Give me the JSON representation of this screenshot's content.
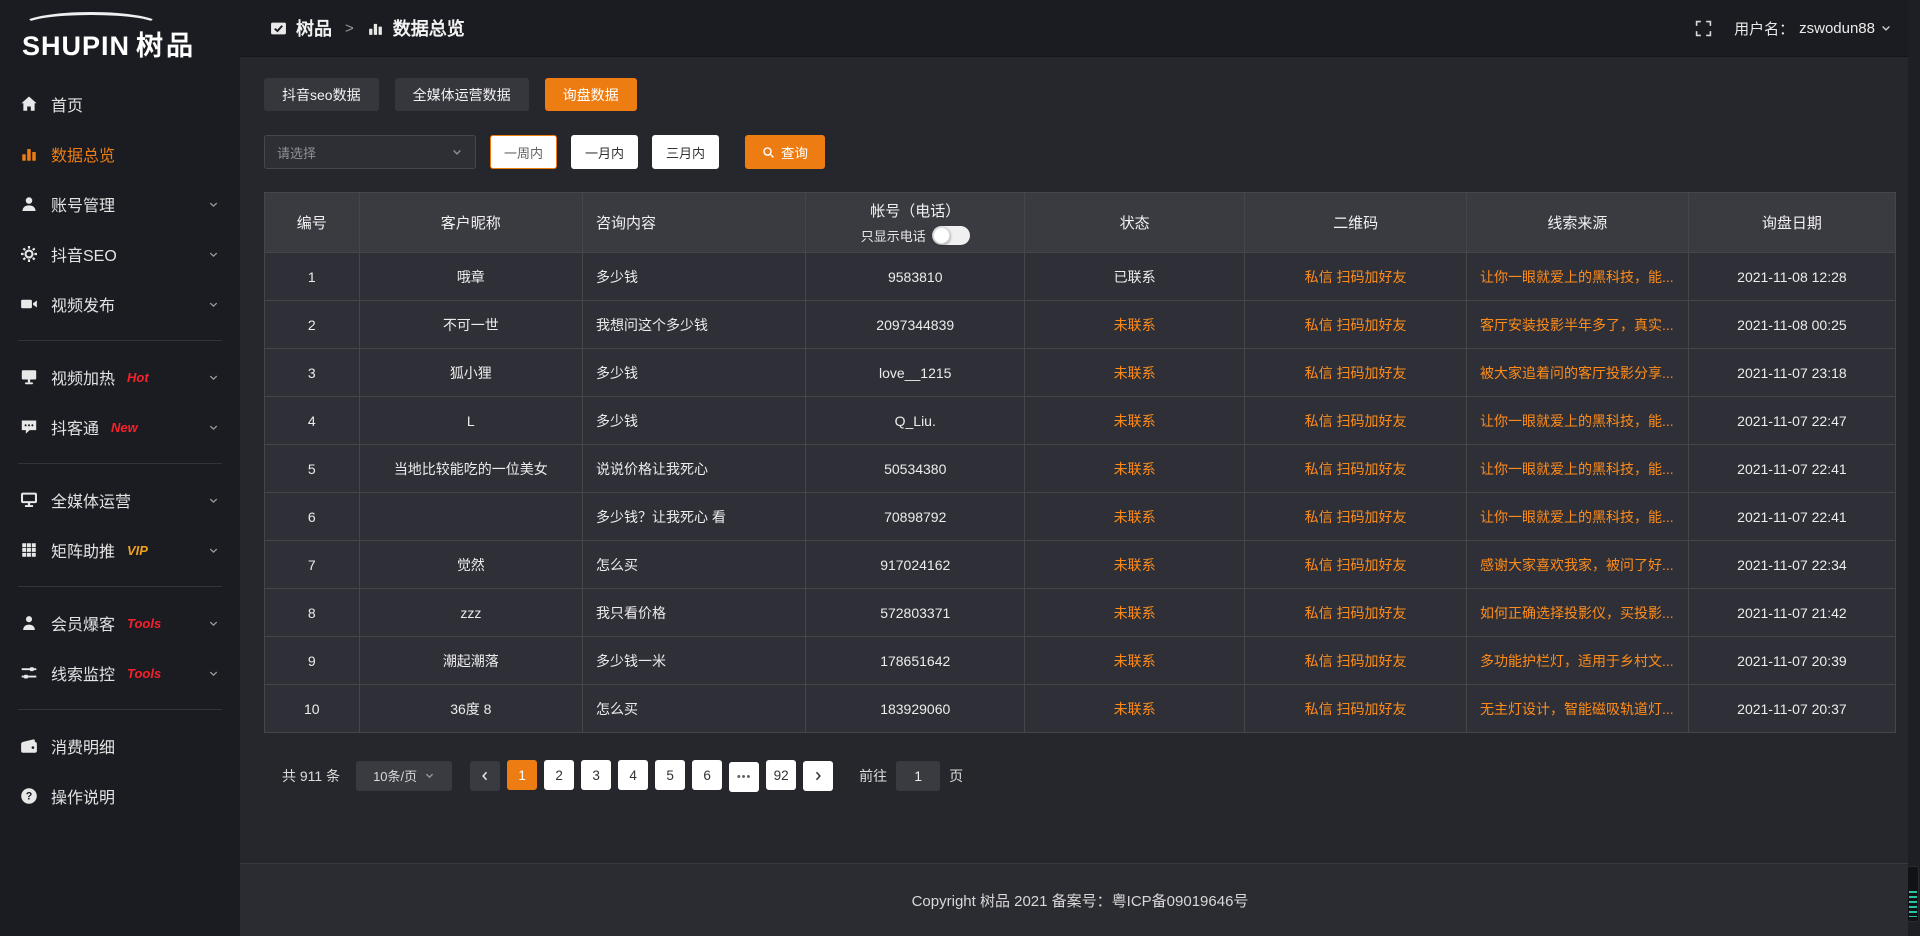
{
  "colors": {
    "accent": "#ed7d12",
    "link_orange": "#ff8c1a",
    "badge_red": "#f5212d",
    "badge_gold": "#efa21c"
  },
  "logo": {
    "text_en": "SHUPIN",
    "text_cn": "树品"
  },
  "sidebar": {
    "items": [
      {
        "label": "首页",
        "icon": "home-icon",
        "active": false,
        "chevron": false
      },
      {
        "label": "数据总览",
        "icon": "bar-chart-icon",
        "active": true,
        "chevron": false
      },
      {
        "label": "账号管理",
        "icon": "user-icon",
        "chevron": true
      },
      {
        "label": "抖音SEO",
        "icon": "gear-icon",
        "chevron": true
      },
      {
        "label": "视频发布",
        "icon": "video-icon",
        "chevron": true,
        "divider_after": true
      },
      {
        "label": "视频加热",
        "icon": "screen-icon",
        "chevron": true,
        "badge": "Hot",
        "badge_color": "#f5212d"
      },
      {
        "label": "抖客通",
        "icon": "chat-icon",
        "chevron": true,
        "badge": "New",
        "badge_color": "#f5212d",
        "divider_after": true
      },
      {
        "label": "全媒体运营",
        "icon": "monitor-icon",
        "chevron": true
      },
      {
        "label": "矩阵助推",
        "icon": "grid-icon",
        "chevron": true,
        "badge": "VIP",
        "badge_color": "#efa21c",
        "divider_after": true
      },
      {
        "label": "会员爆客",
        "icon": "person-icon",
        "chevron": true,
        "badge": "Tools",
        "badge_color": "#f5212d"
      },
      {
        "label": "线索监控",
        "icon": "sliders-icon",
        "chevron": true,
        "badge": "Tools",
        "badge_color": "#f5212d",
        "divider_after": true
      },
      {
        "label": "消费明细",
        "icon": "wallet-icon",
        "chevron": false
      },
      {
        "label": "操作说明",
        "icon": "help-icon",
        "chevron": false
      }
    ]
  },
  "topbar": {
    "breadcrumb_root": "树品",
    "separator": ">",
    "breadcrumb_current": "数据总览",
    "username_label": "用户名：",
    "username": "zswodun88"
  },
  "tabs": [
    {
      "label": "抖音seo数据",
      "active": false
    },
    {
      "label": "全媒体运营数据",
      "active": false
    },
    {
      "label": "询盘数据",
      "active": true
    }
  ],
  "filter": {
    "select_placeholder": "请选择",
    "period_buttons": [
      {
        "label": "一周内",
        "active": true
      },
      {
        "label": "一月内",
        "active": false
      },
      {
        "label": "三月内",
        "active": false
      }
    ],
    "search_label": "查询"
  },
  "table": {
    "headers": [
      "编号",
      "客户昵称",
      "咨询内容",
      "帐号（电话）",
      "状态",
      "二维码",
      "线索来源",
      "询盘日期"
    ],
    "phone_toggle_label": "只显示电话",
    "phone_toggle_on": false,
    "qr_links": [
      "私信",
      "扫码加好友"
    ],
    "rows": [
      {
        "id": "1",
        "nickname": "哦章",
        "content": "多少钱",
        "account": "9583810",
        "status": "已联系",
        "contacted": true,
        "source": "让你一眼就爱上的黑科技，能...",
        "date": "2021-11-08 12:28"
      },
      {
        "id": "2",
        "nickname": "不可一世",
        "content": "我想问这个多少钱",
        "account": "2097344839",
        "status": "未联系",
        "contacted": false,
        "source": "客厅安装投影半年多了，真实...",
        "date": "2021-11-08 00:25"
      },
      {
        "id": "3",
        "nickname": "狐小狸",
        "content": "多少钱",
        "account": "love__1215",
        "status": "未联系",
        "contacted": false,
        "source": "被大家追着问的客厅投影分享...",
        "date": "2021-11-07 23:18"
      },
      {
        "id": "4",
        "nickname": "L",
        "content": "多少钱",
        "account": "Q_Liu.",
        "status": "未联系",
        "contacted": false,
        "source": "让你一眼就爱上的黑科技，能...",
        "date": "2021-11-07 22:47"
      },
      {
        "id": "5",
        "nickname": "当地比较能吃的一位美女",
        "content": "说说价格让我死心",
        "account": "50534380",
        "status": "未联系",
        "contacted": false,
        "source": "让你一眼就爱上的黑科技，能...",
        "date": "2021-11-07 22:41"
      },
      {
        "id": "6",
        "nickname": "",
        "content": "多少钱？让我死心 看",
        "account": "70898792",
        "status": "未联系",
        "contacted": false,
        "source": "让你一眼就爱上的黑科技，能...",
        "date": "2021-11-07 22:41"
      },
      {
        "id": "7",
        "nickname": "觉然",
        "content": "怎么买",
        "account": "917024162",
        "status": "未联系",
        "contacted": false,
        "source": "感谢大家喜欢我家，被问了好...",
        "date": "2021-11-07 22:34"
      },
      {
        "id": "8",
        "nickname": "zzz",
        "content": "我只看价格",
        "account": "572803371",
        "status": "未联系",
        "contacted": false,
        "source": "如何正确选择投影仪，买投影...",
        "date": "2021-11-07 21:42"
      },
      {
        "id": "9",
        "nickname": "潮起潮落",
        "content": "多少钱一米",
        "account": "178651642",
        "status": "未联系",
        "contacted": false,
        "source": "多功能护栏灯，适用于乡村文...",
        "date": "2021-11-07 20:39"
      },
      {
        "id": "10",
        "nickname": "36度 8",
        "content": "怎么买",
        "account": "183929060",
        "status": "未联系",
        "contacted": false,
        "source": "无主灯设计，智能磁吸轨道灯...",
        "date": "2021-11-07 20:37"
      }
    ]
  },
  "pagination": {
    "total_label": "共 911 条",
    "page_size": "10条/页",
    "pages": [
      "1",
      "2",
      "3",
      "4",
      "5",
      "6",
      "•••",
      "92"
    ],
    "active_page": "1",
    "goto_label": "前往",
    "goto_value": "1",
    "page_label": "页"
  },
  "footer": {
    "copyright": "Copyright 树品 2021 备案号：粤ICP备09019646号"
  },
  "icons": {
    "topbar": [
      "doc-check-icon",
      "bar-chart-icon",
      "fullscreen-icon",
      "chevron-down-icon"
    ],
    "search_button": "search-icon",
    "pagination": [
      "chevron-left-icon",
      "chevron-right-icon"
    ]
  }
}
